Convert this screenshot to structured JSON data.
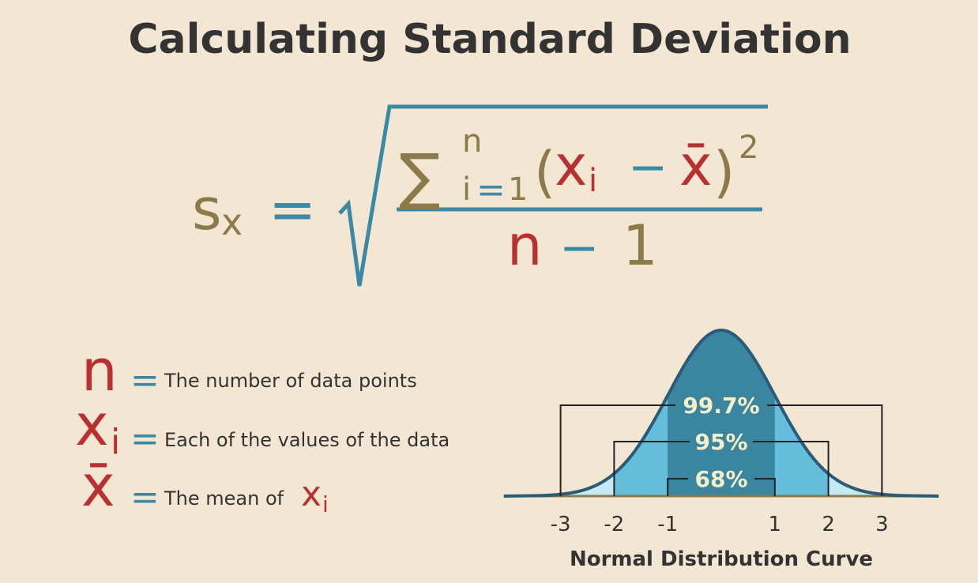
{
  "title": "Calculating Standard Deviation",
  "formula": {
    "lhs": {
      "symbol": "s",
      "subscript": "x"
    },
    "equals": "=",
    "numerator": {
      "sum": "∑",
      "upper": "n",
      "lower": "i",
      "lower_equals": "=",
      "lower_start": "1",
      "open": "(",
      "term": "x",
      "term_sub": "i",
      "minus": "−",
      "mean": "x̄",
      "close": ")",
      "power": "2"
    },
    "denominator": {
      "n": "n",
      "minus": "−",
      "one": "1"
    }
  },
  "legend": [
    {
      "symbol": "n",
      "equals": "=",
      "text": "The number of data points"
    },
    {
      "symbol": "x",
      "subscript": "i",
      "equals": "=",
      "text": "Each of the values of the data"
    },
    {
      "symbol": "x̄",
      "equals": "=",
      "text": "The mean of",
      "inline_symbol": "x",
      "inline_subscript": "i"
    }
  ],
  "curve": {
    "intervals": [
      {
        "label": "99.7%"
      },
      {
        "label": "95%"
      },
      {
        "label": "68%"
      }
    ],
    "x_ticks": [
      -3,
      -2,
      -1,
      1,
      2,
      3
    ],
    "caption": "Normal Distribution Curve"
  }
}
